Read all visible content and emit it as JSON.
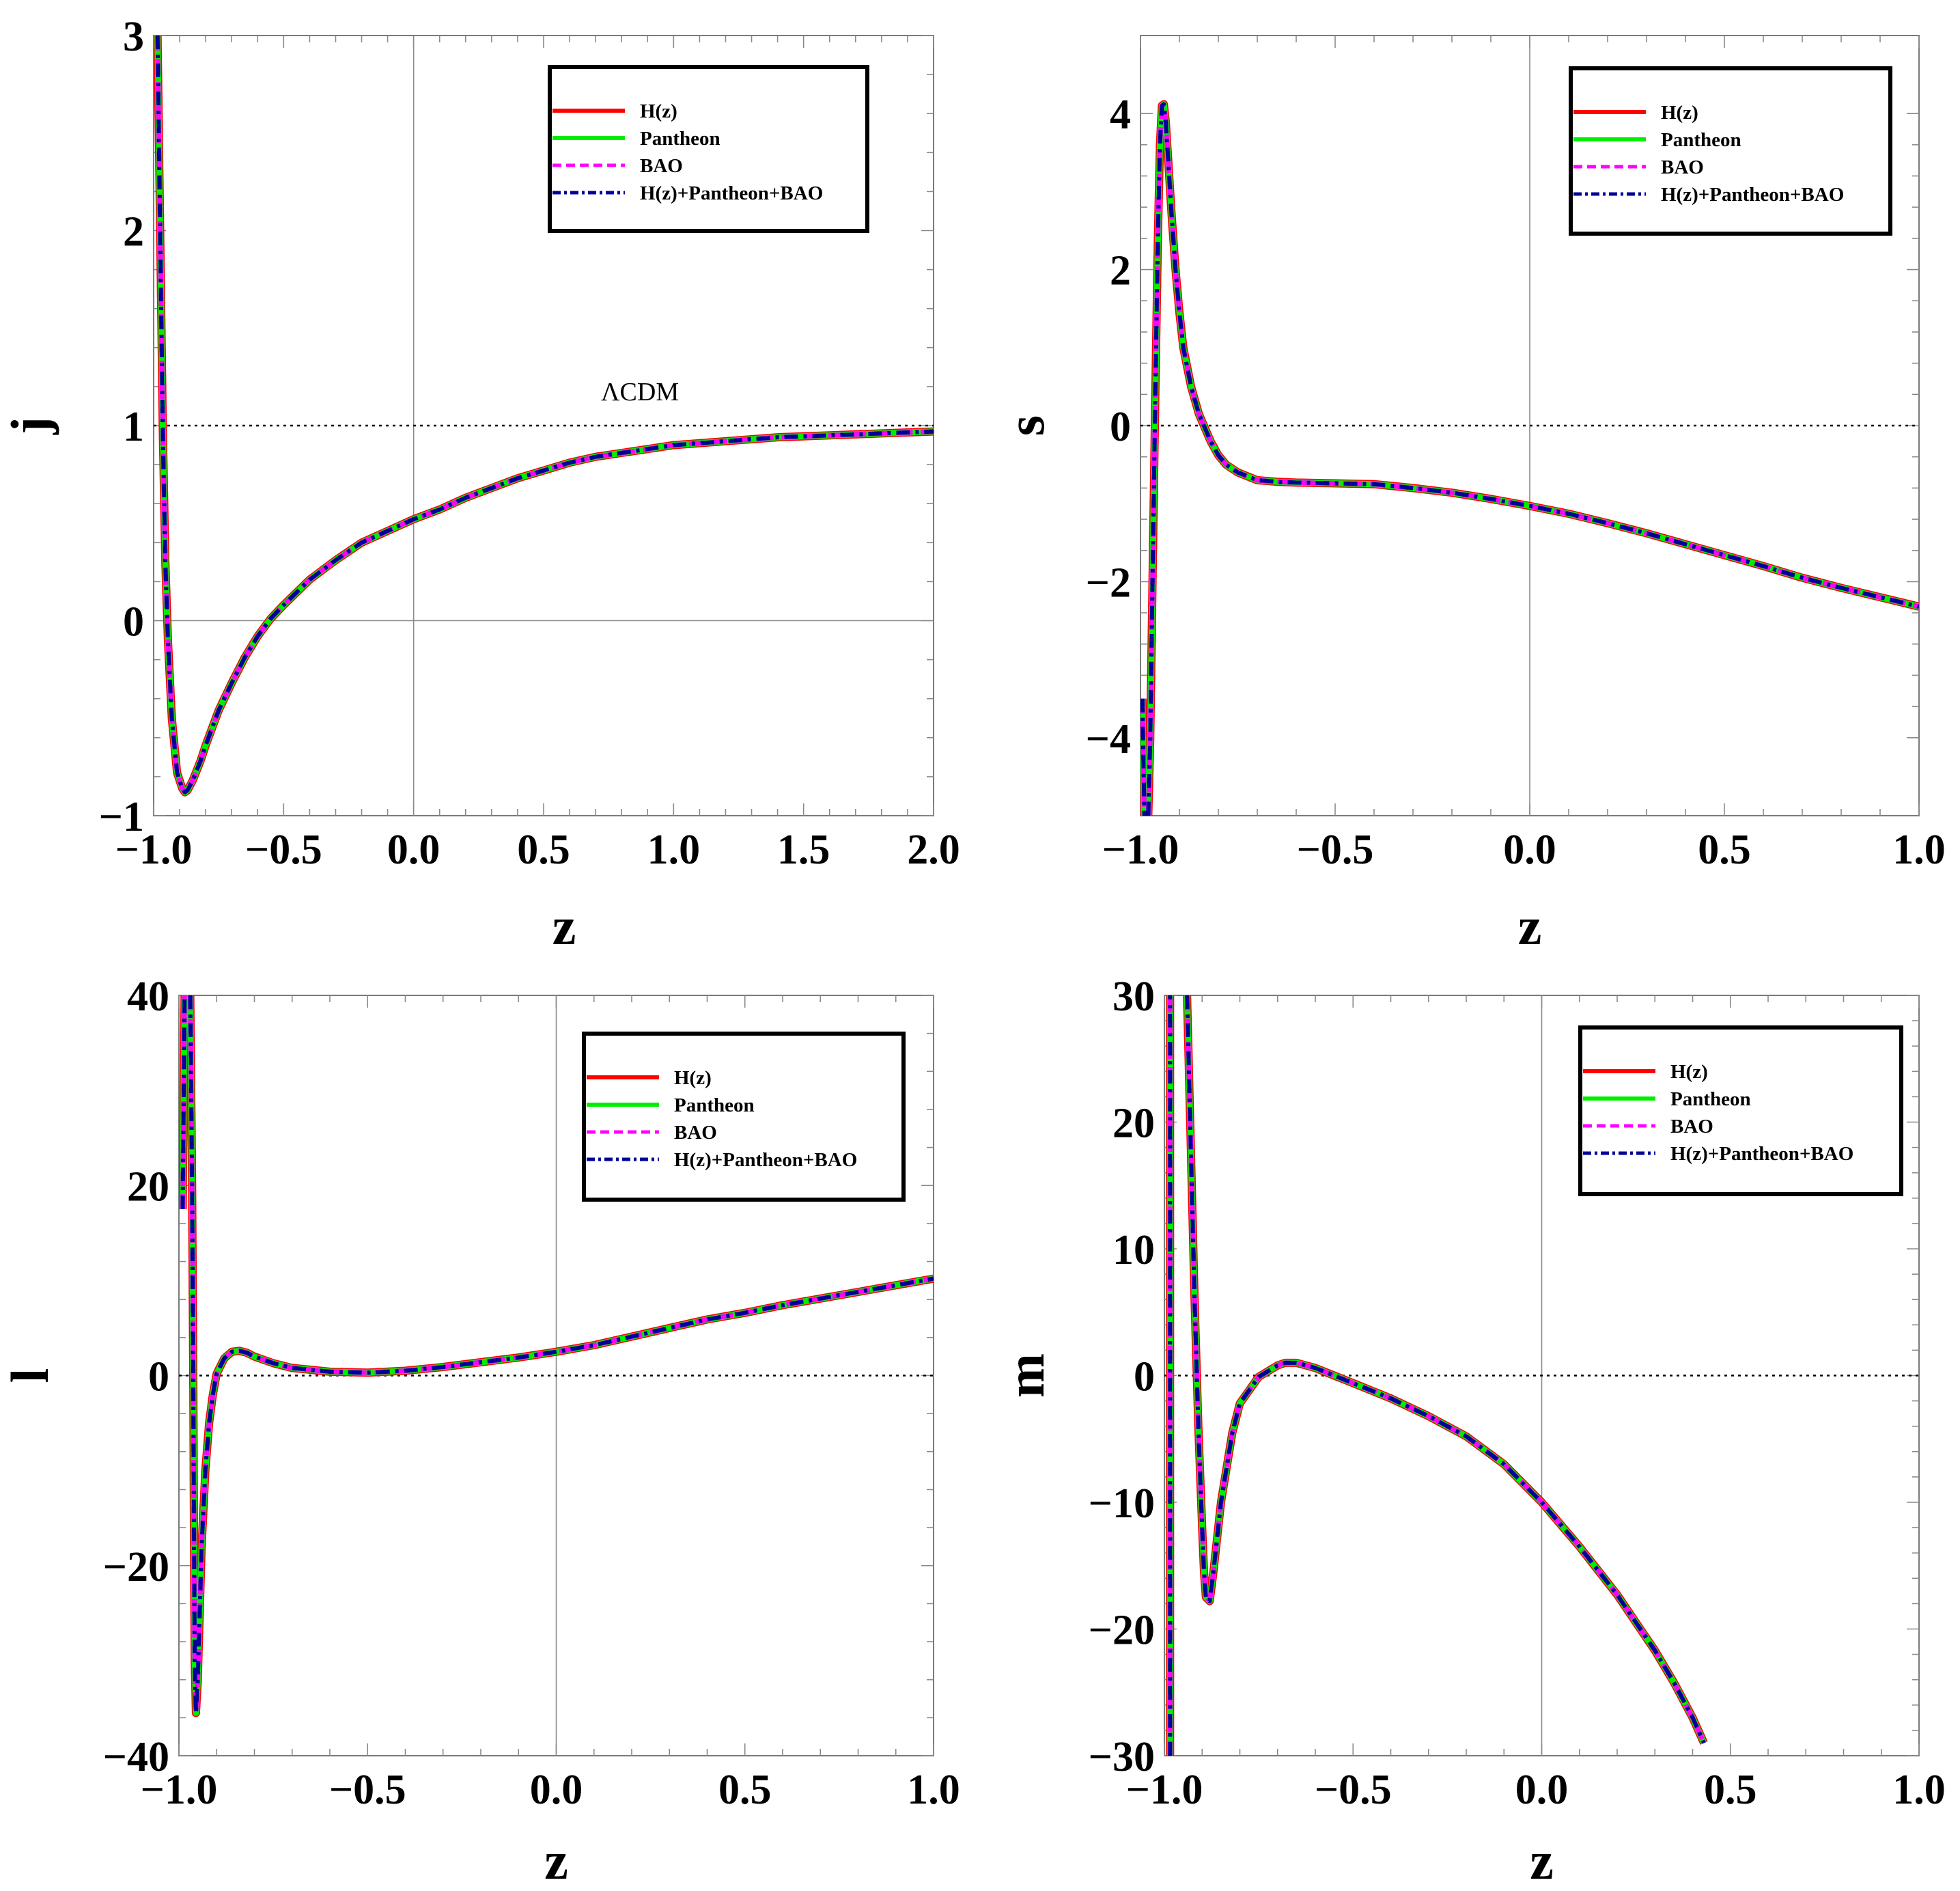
{
  "chart_data": [
    {
      "type": "line",
      "id": "j",
      "xlabel": "z",
      "ylabel": "j",
      "xlim": [
        -1,
        2
      ],
      "ylim": [
        -1,
        3
      ],
      "xticks": [
        -1,
        -0.5,
        0,
        0.5,
        1,
        1.5,
        2
      ],
      "xtick_labels": [
        "−1.0",
        "−0.5",
        "0.0",
        "0.5",
        "1.0",
        "1.5",
        "2.0"
      ],
      "yticks": [
        -1,
        0,
        1,
        2,
        3
      ],
      "ytick_labels": [
        "−1",
        "0",
        "1",
        "2",
        "3"
      ],
      "reference_line": {
        "y": 1,
        "label": "ΛCDM"
      },
      "legend_position": "top-right",
      "curve": {
        "x": [
          -0.985,
          -0.975,
          -0.965,
          -0.955,
          -0.945,
          -0.93,
          -0.91,
          -0.89,
          -0.88,
          -0.87,
          -0.85,
          -0.82,
          -0.8,
          -0.75,
          -0.7,
          -0.65,
          -0.6,
          -0.55,
          -0.5,
          -0.4,
          -0.3,
          -0.2,
          -0.1,
          0,
          0.1,
          0.2,
          0.3,
          0.4,
          0.5,
          0.6,
          0.7,
          0.8,
          0.9,
          1.0,
          1.2,
          1.4,
          1.6,
          1.8,
          2.0
        ],
        "y": [
          3.0,
          2.0,
          1.0,
          0.3,
          -0.1,
          -0.5,
          -0.78,
          -0.86,
          -0.88,
          -0.87,
          -0.82,
          -0.72,
          -0.64,
          -0.46,
          -0.32,
          -0.19,
          -0.08,
          0.01,
          0.08,
          0.21,
          0.31,
          0.4,
          0.46,
          0.52,
          0.57,
          0.63,
          0.68,
          0.73,
          0.77,
          0.81,
          0.84,
          0.86,
          0.88,
          0.9,
          0.92,
          0.94,
          0.95,
          0.96,
          0.97
        ]
      }
    },
    {
      "type": "line",
      "id": "s",
      "xlabel": "z",
      "ylabel": "s",
      "xlim": [
        -1,
        1
      ],
      "ylim": [
        -5,
        5
      ],
      "xticks": [
        -1,
        -0.5,
        0,
        0.5,
        1
      ],
      "xtick_labels": [
        "−1.0",
        "−0.5",
        "0.0",
        "0.5",
        "1.0"
      ],
      "yticks": [
        -4,
        -2,
        0,
        2,
        4
      ],
      "ytick_labels": [
        "−4",
        "−2",
        "0",
        "2",
        "4"
      ],
      "reference_line": {
        "y": 0
      },
      "legend_position": "top-right",
      "curve": {
        "x": [
          -0.995,
          -0.99,
          -0.985,
          -0.98,
          -0.975,
          -0.97,
          -0.965,
          -0.96,
          -0.955,
          -0.95,
          -0.945,
          -0.94,
          -0.935,
          -0.93,
          -0.92,
          -0.91,
          -0.9,
          -0.89,
          -0.87,
          -0.85,
          -0.82,
          -0.8,
          -0.78,
          -0.75,
          -0.7,
          -0.65,
          -0.6,
          -0.5,
          -0.4,
          -0.3,
          -0.2,
          -0.1,
          0,
          0.1,
          0.2,
          0.3,
          0.4,
          0.5,
          0.6,
          0.7,
          0.8,
          0.9,
          1.0
        ],
        "y": [
          -3.5,
          -5,
          null,
          -5,
          -4.0,
          -2.3,
          -0.6,
          1.0,
          2.5,
          3.6,
          4.1,
          4.12,
          3.9,
          3.5,
          2.7,
          2.0,
          1.45,
          1.0,
          0.5,
          0.15,
          -0.2,
          -0.38,
          -0.5,
          -0.6,
          -0.7,
          -0.72,
          -0.73,
          -0.74,
          -0.75,
          -0.8,
          -0.86,
          -0.94,
          -1.03,
          -1.13,
          -1.25,
          -1.38,
          -1.52,
          -1.66,
          -1.8,
          -1.95,
          -2.08,
          -2.2,
          -2.32
        ]
      }
    },
    {
      "type": "line",
      "id": "l",
      "xlabel": "z",
      "ylabel": "l",
      "xlim": [
        -1,
        1
      ],
      "ylim": [
        -40,
        40
      ],
      "xticks": [
        -1,
        -0.5,
        0,
        0.5,
        1
      ],
      "xtick_labels": [
        "−1.0",
        "−0.5",
        "0.0",
        "0.5",
        "1.0"
      ],
      "yticks": [
        -40,
        -20,
        0,
        20,
        40
      ],
      "ytick_labels": [
        "−40",
        "−20",
        "0",
        "20",
        "40"
      ],
      "reference_line": {
        "y": 0
      },
      "legend_position": "top-right",
      "curve": {
        "x": [
          -0.99,
          -0.985,
          -0.98,
          -0.97,
          -0.965,
          -0.962,
          -0.96,
          -0.958,
          -0.955,
          -0.95,
          -0.945,
          -0.94,
          -0.93,
          -0.92,
          -0.91,
          -0.9,
          -0.88,
          -0.86,
          -0.84,
          -0.82,
          -0.8,
          -0.75,
          -0.7,
          -0.6,
          -0.5,
          -0.4,
          -0.3,
          -0.2,
          -0.1,
          0,
          0.1,
          0.2,
          0.3,
          0.4,
          0.5,
          0.6,
          0.7,
          0.8,
          0.9,
          1.0
        ],
        "y": [
          17.5,
          40,
          null,
          40,
          20,
          0,
          -18,
          -30,
          -35.5,
          -32,
          -25,
          -18,
          -10,
          -5,
          -2,
          0.2,
          1.8,
          2.5,
          2.6,
          2.4,
          2.0,
          1.3,
          0.8,
          0.4,
          0.3,
          0.5,
          0.9,
          1.4,
          1.9,
          2.5,
          3.2,
          4.1,
          5.0,
          5.9,
          6.6,
          7.4,
          8.1,
          8.8,
          9.5,
          10.2
        ]
      }
    },
    {
      "type": "line",
      "id": "m",
      "xlabel": "z",
      "ylabel": "m",
      "xlim": [
        -1,
        1
      ],
      "ylim": [
        -30,
        30
      ],
      "xticks": [
        -1,
        -0.5,
        0,
        0.5,
        1
      ],
      "xtick_labels": [
        "−1.0",
        "−0.5",
        "0.0",
        "0.5",
        "1.0"
      ],
      "yticks": [
        -30,
        -20,
        -10,
        0,
        10,
        20,
        30
      ],
      "ytick_labels": [
        "−30",
        "−20",
        "−10",
        "0",
        "10",
        "20",
        "30"
      ],
      "reference_line": {
        "y": 0
      },
      "legend_position": "top-right",
      "curve": {
        "x": [
          -0.985,
          -0.985,
          null,
          -0.94,
          -0.93,
          -0.92,
          -0.91,
          -0.9,
          -0.895,
          -0.89,
          -0.88,
          -0.87,
          -0.85,
          -0.82,
          -0.8,
          -0.75,
          -0.7,
          -0.68,
          -0.65,
          -0.6,
          -0.55,
          -0.5,
          -0.4,
          -0.3,
          -0.2,
          -0.1,
          0,
          0.1,
          0.2,
          0.3,
          0.35,
          0.4,
          0.43
        ],
        "y": [
          -30,
          30,
          null,
          30,
          18,
          6,
          -4,
          -12,
          -15.5,
          -17.5,
          -17.8,
          -15.5,
          -10,
          -4.5,
          -2.2,
          -0.1,
          0.8,
          1.0,
          1.0,
          0.6,
          0.0,
          -0.6,
          -1.8,
          -3.2,
          -4.8,
          -7.0,
          -10.0,
          -13.5,
          -17.3,
          -21.7,
          -24.2,
          -27,
          -29
        ]
      }
    }
  ],
  "legend": {
    "entries": [
      {
        "label": "H(z)",
        "color": "#ff0000",
        "style": "solid"
      },
      {
        "label": "Pantheon",
        "color": "#00ee00",
        "style": "solid"
      },
      {
        "label": "BAO",
        "color": "#ff00ff",
        "style": "dashed"
      },
      {
        "label": "H(z)+Pantheon+BAO",
        "color": "#000099",
        "style": "dashdot"
      }
    ]
  }
}
